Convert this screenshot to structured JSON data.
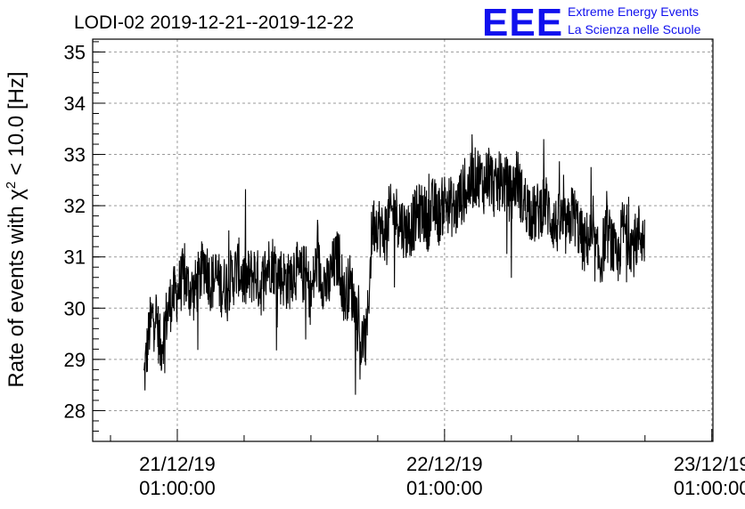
{
  "chart_data": {
    "type": "line",
    "title": "LODI-02 2019-12-21--2019-12-22",
    "ylabel": "Rate of events with χ",
    "ylabel_sup": "2",
    "ylabel_rest": " < 10.0 [Hz]",
    "logo": {
      "mark": "EEE",
      "line1": "Extreme Energy Events",
      "line2": "La Scienza nelle Scuole",
      "color": "#1010ee"
    },
    "ylim": [
      27.4,
      35.25
    ],
    "yticks": [
      28,
      29,
      30,
      31,
      32,
      33,
      34,
      35
    ],
    "xlim_hours": [
      -7.6,
      48.1
    ],
    "xticks": [
      {
        "hour": 0,
        "date": "21/12/19",
        "time": "01:00:00"
      },
      {
        "hour": 24,
        "date": "22/12/19",
        "time": "01:00:00"
      },
      {
        "hour": 48,
        "date": "23/12/19",
        "time": "01:00:00"
      }
    ],
    "grid": true,
    "line_color": "#000000",
    "series": [
      {
        "x_start_hour": -3.0,
        "x_step_hours": 0.5,
        "values": [
          28.6,
          29.6,
          30.0,
          29.2,
          29.8,
          30.2,
          30.3,
          30.6,
          30.4,
          30.3,
          30.6,
          30.9,
          30.5,
          30.6,
          30.4,
          30.5,
          30.6,
          30.8,
          30.5,
          30.6,
          30.7,
          30.4,
          30.8,
          30.9,
          30.7,
          30.6,
          30.5,
          30.8,
          30.6,
          30.7,
          30.2,
          30.9,
          30.6,
          30.4,
          30.8,
          31.0,
          30.2,
          30.5,
          30.0,
          29.3,
          29.4,
          31.6,
          31.7,
          31.4,
          31.8,
          31.9,
          31.7,
          31.5,
          31.6,
          31.8,
          31.9,
          31.7,
          32.0,
          31.8,
          32.1,
          32.0,
          31.9,
          32.2,
          32.3,
          32.5,
          32.6,
          32.4,
          32.7,
          32.3,
          32.5,
          32.4,
          32.2,
          32.6,
          32.1,
          32.0,
          31.8,
          31.9,
          32.1,
          31.8,
          31.6,
          31.7,
          31.5,
          31.9,
          31.6,
          31.2,
          31.4,
          31.1,
          30.9,
          31.5,
          31.3,
          30.8,
          31.6,
          31.4,
          31.2,
          31.5,
          31.3
        ]
      }
    ],
    "noise_amplitude_hz": 0.6,
    "spike_amplitude_hz": 1.4
  }
}
